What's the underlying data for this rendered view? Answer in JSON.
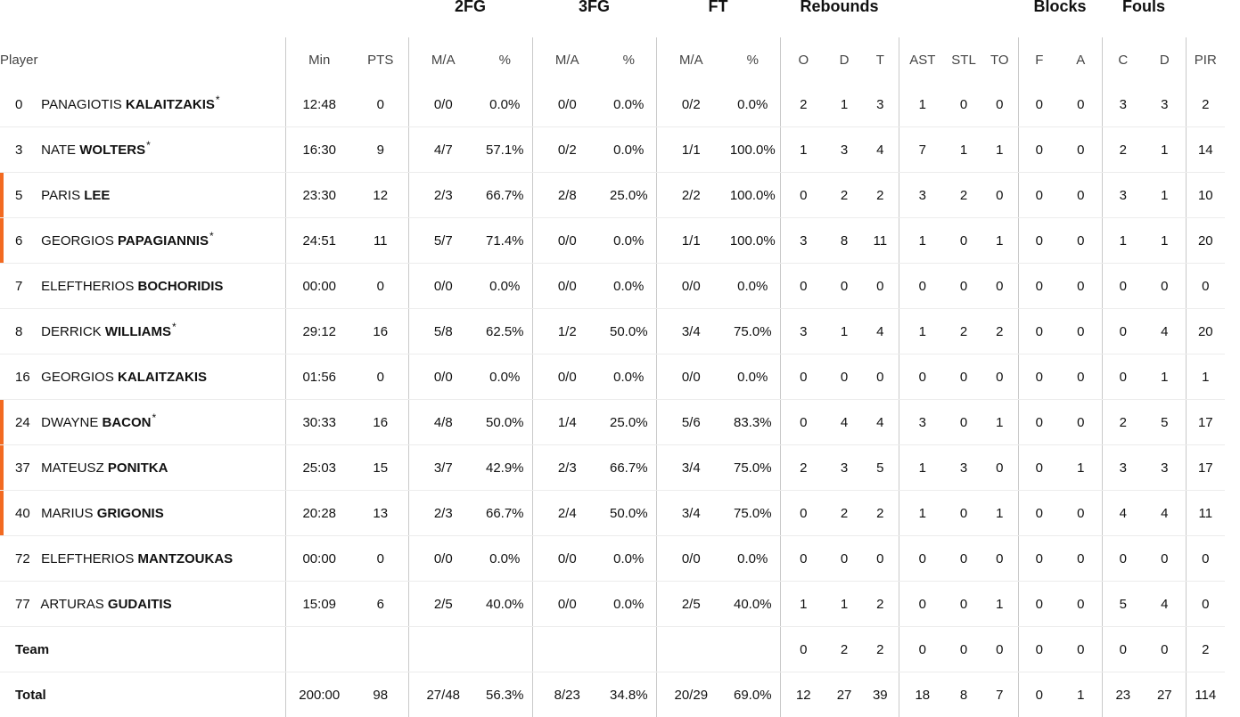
{
  "groups": {
    "fg2": "2FG",
    "fg3": "3FG",
    "ft": "FT",
    "rebounds": "Rebounds",
    "blocks": "Blocks",
    "fouls": "Fouls"
  },
  "columns": {
    "player": "Player",
    "min": "Min",
    "pts": "PTS",
    "fg2_ma": "M/A",
    "fg2_pct": "%",
    "fg3_ma": "M/A",
    "fg3_pct": "%",
    "ft_ma": "M/A",
    "ft_pct": "%",
    "reb_o": "O",
    "reb_d": "D",
    "reb_t": "T",
    "ast": "AST",
    "stl": "STL",
    "to": "TO",
    "blk_f": "F",
    "blk_a": "A",
    "foul_c": "C",
    "foul_d": "D",
    "pir": "PIR"
  },
  "accent_color": "#f26a21",
  "players": [
    {
      "num": "0",
      "first": "PANAGIOTIS",
      "last": "KALAITZAKIS",
      "star": "*",
      "highlight": false,
      "min": "12:48",
      "pts": "0",
      "fg2_ma": "0/0",
      "fg2_pct": "0.0%",
      "fg3_ma": "0/0",
      "fg3_pct": "0.0%",
      "ft_ma": "0/2",
      "ft_pct": "0.0%",
      "reb_o": "2",
      "reb_d": "1",
      "reb_t": "3",
      "ast": "1",
      "stl": "0",
      "to": "0",
      "blk_f": "0",
      "blk_a": "0",
      "foul_c": "3",
      "foul_d": "3",
      "pir": "2"
    },
    {
      "num": "3",
      "first": "NATE",
      "last": "WOLTERS",
      "star": "*",
      "highlight": false,
      "min": "16:30",
      "pts": "9",
      "fg2_ma": "4/7",
      "fg2_pct": "57.1%",
      "fg3_ma": "0/2",
      "fg3_pct": "0.0%",
      "ft_ma": "1/1",
      "ft_pct": "100.0%",
      "reb_o": "1",
      "reb_d": "3",
      "reb_t": "4",
      "ast": "7",
      "stl": "1",
      "to": "1",
      "blk_f": "0",
      "blk_a": "0",
      "foul_c": "2",
      "foul_d": "1",
      "pir": "14"
    },
    {
      "num": "5",
      "first": "PARIS",
      "last": "LEE",
      "star": "",
      "highlight": true,
      "min": "23:30",
      "pts": "12",
      "fg2_ma": "2/3",
      "fg2_pct": "66.7%",
      "fg3_ma": "2/8",
      "fg3_pct": "25.0%",
      "ft_ma": "2/2",
      "ft_pct": "100.0%",
      "reb_o": "0",
      "reb_d": "2",
      "reb_t": "2",
      "ast": "3",
      "stl": "2",
      "to": "0",
      "blk_f": "0",
      "blk_a": "0",
      "foul_c": "3",
      "foul_d": "1",
      "pir": "10"
    },
    {
      "num": "6",
      "first": "GEORGIOS",
      "last": "PAPAGIANNIS",
      "star": "*",
      "highlight": true,
      "min": "24:51",
      "pts": "11",
      "fg2_ma": "5/7",
      "fg2_pct": "71.4%",
      "fg3_ma": "0/0",
      "fg3_pct": "0.0%",
      "ft_ma": "1/1",
      "ft_pct": "100.0%",
      "reb_o": "3",
      "reb_d": "8",
      "reb_t": "11",
      "ast": "1",
      "stl": "0",
      "to": "1",
      "blk_f": "0",
      "blk_a": "0",
      "foul_c": "1",
      "foul_d": "1",
      "pir": "20"
    },
    {
      "num": "7",
      "first": "ELEFTHERIOS",
      "last": "BOCHORIDIS",
      "star": "",
      "highlight": false,
      "min": "00:00",
      "pts": "0",
      "fg2_ma": "0/0",
      "fg2_pct": "0.0%",
      "fg3_ma": "0/0",
      "fg3_pct": "0.0%",
      "ft_ma": "0/0",
      "ft_pct": "0.0%",
      "reb_o": "0",
      "reb_d": "0",
      "reb_t": "0",
      "ast": "0",
      "stl": "0",
      "to": "0",
      "blk_f": "0",
      "blk_a": "0",
      "foul_c": "0",
      "foul_d": "0",
      "pir": "0"
    },
    {
      "num": "8",
      "first": "DERRICK",
      "last": "WILLIAMS",
      "star": "*",
      "highlight": false,
      "min": "29:12",
      "pts": "16",
      "fg2_ma": "5/8",
      "fg2_pct": "62.5%",
      "fg3_ma": "1/2",
      "fg3_pct": "50.0%",
      "ft_ma": "3/4",
      "ft_pct": "75.0%",
      "reb_o": "3",
      "reb_d": "1",
      "reb_t": "4",
      "ast": "1",
      "stl": "2",
      "to": "2",
      "blk_f": "0",
      "blk_a": "0",
      "foul_c": "0",
      "foul_d": "4",
      "pir": "20"
    },
    {
      "num": "16",
      "first": "GEORGIOS",
      "last": "KALAITZAKIS",
      "star": "",
      "highlight": false,
      "min": "01:56",
      "pts": "0",
      "fg2_ma": "0/0",
      "fg2_pct": "0.0%",
      "fg3_ma": "0/0",
      "fg3_pct": "0.0%",
      "ft_ma": "0/0",
      "ft_pct": "0.0%",
      "reb_o": "0",
      "reb_d": "0",
      "reb_t": "0",
      "ast": "0",
      "stl": "0",
      "to": "0",
      "blk_f": "0",
      "blk_a": "0",
      "foul_c": "0",
      "foul_d": "1",
      "pir": "1"
    },
    {
      "num": "24",
      "first": "DWAYNE",
      "last": "BACON",
      "star": "*",
      "highlight": true,
      "min": "30:33",
      "pts": "16",
      "fg2_ma": "4/8",
      "fg2_pct": "50.0%",
      "fg3_ma": "1/4",
      "fg3_pct": "25.0%",
      "ft_ma": "5/6",
      "ft_pct": "83.3%",
      "reb_o": "0",
      "reb_d": "4",
      "reb_t": "4",
      "ast": "3",
      "stl": "0",
      "to": "1",
      "blk_f": "0",
      "blk_a": "0",
      "foul_c": "2",
      "foul_d": "5",
      "pir": "17"
    },
    {
      "num": "37",
      "first": "MATEUSZ",
      "last": "PONITKA",
      "star": "",
      "highlight": true,
      "min": "25:03",
      "pts": "15",
      "fg2_ma": "3/7",
      "fg2_pct": "42.9%",
      "fg3_ma": "2/3",
      "fg3_pct": "66.7%",
      "ft_ma": "3/4",
      "ft_pct": "75.0%",
      "reb_o": "2",
      "reb_d": "3",
      "reb_t": "5",
      "ast": "1",
      "stl": "3",
      "to": "0",
      "blk_f": "0",
      "blk_a": "1",
      "foul_c": "3",
      "foul_d": "3",
      "pir": "17"
    },
    {
      "num": "40",
      "first": "MARIUS",
      "last": "GRIGONIS",
      "star": "",
      "highlight": true,
      "min": "20:28",
      "pts": "13",
      "fg2_ma": "2/3",
      "fg2_pct": "66.7%",
      "fg3_ma": "2/4",
      "fg3_pct": "50.0%",
      "ft_ma": "3/4",
      "ft_pct": "75.0%",
      "reb_o": "0",
      "reb_d": "2",
      "reb_t": "2",
      "ast": "1",
      "stl": "0",
      "to": "1",
      "blk_f": "0",
      "blk_a": "0",
      "foul_c": "4",
      "foul_d": "4",
      "pir": "11"
    },
    {
      "num": "72",
      "first": "ELEFTHERIOS",
      "last": "MANTZOUKAS",
      "star": "",
      "highlight": false,
      "min": "00:00",
      "pts": "0",
      "fg2_ma": "0/0",
      "fg2_pct": "0.0%",
      "fg3_ma": "0/0",
      "fg3_pct": "0.0%",
      "ft_ma": "0/0",
      "ft_pct": "0.0%",
      "reb_o": "0",
      "reb_d": "0",
      "reb_t": "0",
      "ast": "0",
      "stl": "0",
      "to": "0",
      "blk_f": "0",
      "blk_a": "0",
      "foul_c": "0",
      "foul_d": "0",
      "pir": "0"
    },
    {
      "num": "77",
      "first": "ARTURAS",
      "last": "GUDAITIS",
      "star": "",
      "highlight": false,
      "min": "15:09",
      "pts": "6",
      "fg2_ma": "2/5",
      "fg2_pct": "40.0%",
      "fg3_ma": "0/0",
      "fg3_pct": "0.0%",
      "ft_ma": "2/5",
      "ft_pct": "40.0%",
      "reb_o": "1",
      "reb_d": "1",
      "reb_t": "2",
      "ast": "0",
      "stl": "0",
      "to": "1",
      "blk_f": "0",
      "blk_a": "0",
      "foul_c": "5",
      "foul_d": "4",
      "pir": "0"
    }
  ],
  "team": {
    "label": "Team",
    "reb_o": "0",
    "reb_d": "2",
    "reb_t": "2",
    "ast": "0",
    "stl": "0",
    "to": "0",
    "blk_f": "0",
    "blk_a": "0",
    "foul_c": "0",
    "foul_d": "0",
    "pir": "2"
  },
  "total": {
    "label": "Total",
    "min": "200:00",
    "pts": "98",
    "fg2_ma": "27/48",
    "fg2_pct": "56.3%",
    "fg3_ma": "8/23",
    "fg3_pct": "34.8%",
    "ft_ma": "20/29",
    "ft_pct": "69.0%",
    "reb_o": "12",
    "reb_d": "27",
    "reb_t": "39",
    "ast": "18",
    "stl": "8",
    "to": "7",
    "blk_f": "0",
    "blk_a": "1",
    "foul_c": "23",
    "foul_d": "27",
    "pir": "114"
  }
}
